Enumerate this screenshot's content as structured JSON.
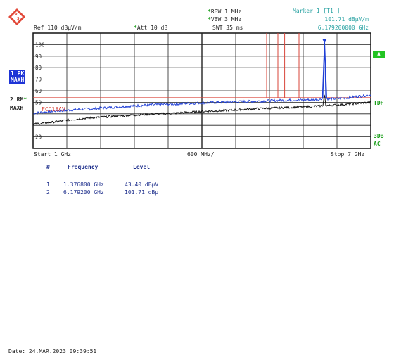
{
  "header": {
    "rbw": "RBW 1 MHz",
    "vbw": "VBW 3 MHz",
    "swt": "SWT 35 ms",
    "ref": "Ref  110 dBµV/m",
    "att": "Att  10 dB",
    "marker_title": "Marker 1 [T1 ]",
    "marker_level": "101.71 dBµV/m",
    "marker_freq": "6.179200000 GHz"
  },
  "side_left": {
    "trace1_badge": "1 PK",
    "trace1_mode": "MAXH",
    "trace2_label": "2 RM",
    "trace2_mode": "MAXH"
  },
  "side_right": {
    "a_badge": "A",
    "tdf": "TDF",
    "db3": "3DB",
    "ac": "AC"
  },
  "limit_line_label": "FCC15AV",
  "marker_flag": "1",
  "footer_axis": {
    "start": "Start  1 GHz",
    "span": "600 MHz/",
    "stop": "Stop  7 GHz"
  },
  "marker_table": {
    "headers": [
      "#",
      "Frequency",
      "Level"
    ],
    "rows": [
      {
        "id": "1",
        "frequency": "1.376800 GHz",
        "level": "43.40 dBµV"
      },
      {
        "id": "2",
        "frequency": "6.179200 GHz",
        "level": "101.71 dBµ"
      }
    ]
  },
  "date_line": "Date: 24.MAR.2023  09:39:51",
  "chart_data": {
    "type": "line",
    "xunit": "GHz",
    "xlim": [
      1,
      7
    ],
    "ylim": [
      10,
      110
    ],
    "yticks": [
      20,
      30,
      40,
      50,
      60,
      70,
      80,
      90,
      100
    ],
    "ytick_labels": [
      "20",
      "",
      "",
      "50",
      "60",
      "70",
      "80",
      "90",
      "100"
    ],
    "grid": true,
    "colors": {
      "pk": "#1f3fd6",
      "rm": "#111111",
      "limit": "#d9463a"
    },
    "limit_line": {
      "name": "FCC15AV",
      "value": 54
    },
    "limit_markers_x": [
      5.15,
      5.35,
      5.47,
      5.725
    ],
    "marker": {
      "x": 6.1792,
      "y": 101.71,
      "label": "1"
    },
    "series": [
      {
        "id": "pk",
        "x": [
          1.0,
          1.2,
          1.4,
          1.6,
          1.8,
          2.0,
          2.5,
          3.0,
          3.5,
          4.0,
          4.5,
          5.0,
          5.5,
          6.0,
          6.1,
          6.15,
          6.179,
          6.2,
          6.25,
          6.5,
          7.0
        ],
        "y": [
          40.5,
          41.5,
          42.5,
          43.0,
          43.8,
          44.2,
          46.0,
          47.5,
          48.5,
          49.5,
          50.3,
          51.0,
          51.8,
          52.3,
          52.5,
          54,
          101.7,
          54,
          52.8,
          53.5,
          56.5
        ]
      },
      {
        "id": "rm",
        "x": [
          1.0,
          1.2,
          1.4,
          1.6,
          1.8,
          2.0,
          2.5,
          3.0,
          3.5,
          4.0,
          4.5,
          5.0,
          5.5,
          6.0,
          6.15,
          6.179,
          6.2,
          6.5,
          7.0
        ],
        "y": [
          31.0,
          32.0,
          33.0,
          34.5,
          35.5,
          36.5,
          38.0,
          39.5,
          40.5,
          42.0,
          43.0,
          44.5,
          45.5,
          46.5,
          47.0,
          58.0,
          47.2,
          48.0,
          50.0
        ]
      }
    ]
  }
}
